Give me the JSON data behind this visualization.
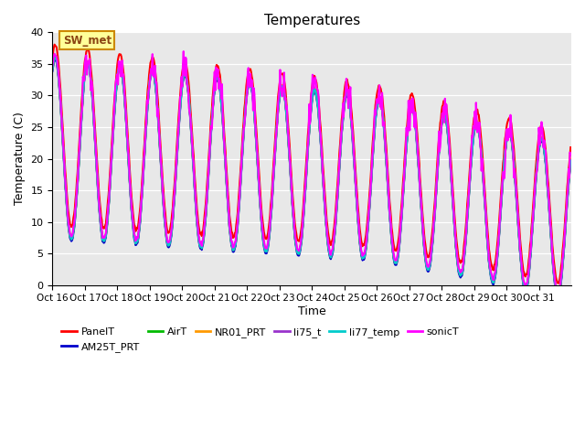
{
  "title": "Temperatures",
  "xlabel": "Time",
  "ylabel": "Temperature (C)",
  "ylim": [
    0,
    40
  ],
  "yticks": [
    0,
    5,
    10,
    15,
    20,
    25,
    30,
    35,
    40
  ],
  "x_labels": [
    "Oct 16",
    "Oct 17",
    "Oct 18",
    "Oct 19",
    "Oct 20",
    "Oct 21",
    "Oct 22",
    "Oct 23",
    "Oct 24",
    "Oct 25",
    "Oct 26",
    "Oct 27",
    "Oct 28",
    "Oct 29",
    "Oct 30",
    "Oct 31"
  ],
  "tick_positions": [
    0,
    1,
    2,
    3,
    4,
    5,
    6,
    7,
    8,
    9,
    10,
    11,
    12,
    13,
    14,
    15
  ],
  "bg_color": "#e8e8e8",
  "fig_color": "#ffffff",
  "annotation_text": "SW_met",
  "annotation_bg": "#ffff99",
  "annotation_border": "#cc8800",
  "series_order": [
    "PanelT",
    "AM25T_PRT",
    "AirT",
    "NR01_PRT",
    "li75_t",
    "li77_temp",
    "sonicT"
  ],
  "series": {
    "PanelT": {
      "color": "#ff0000",
      "lw": 1.5
    },
    "AM25T_PRT": {
      "color": "#0000cc",
      "lw": 1.5
    },
    "AirT": {
      "color": "#00bb00",
      "lw": 1.5
    },
    "NR01_PRT": {
      "color": "#ff9900",
      "lw": 1.5
    },
    "li75_t": {
      "color": "#9933cc",
      "lw": 1.5
    },
    "li77_temp": {
      "color": "#00cccc",
      "lw": 1.5
    },
    "sonicT": {
      "color": "#ff00ff",
      "lw": 1.5
    }
  }
}
